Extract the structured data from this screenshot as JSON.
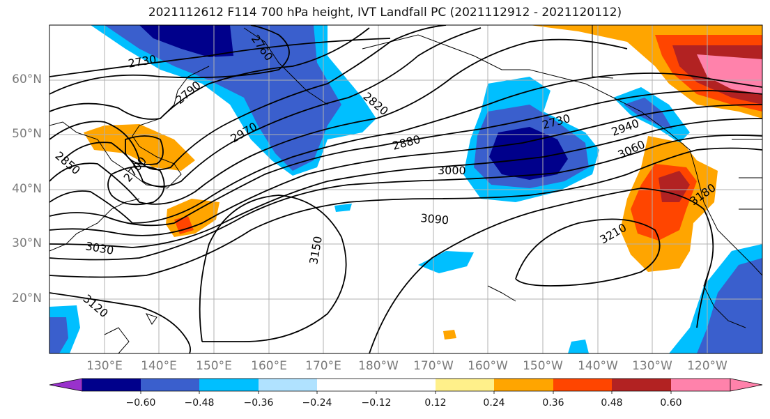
{
  "title": "2021112612 F114 700 hPa height, IVT Landfall PC (2021112912 - 2021120112)",
  "lat_labels": [
    "60°N",
    "50°N",
    "40°N",
    "30°N",
    "20°N"
  ],
  "lon_labels": [
    "130°E",
    "140°E",
    "150°E",
    "160°E",
    "170°E",
    "180°W",
    "170°W",
    "160°W",
    "150°W",
    "140°W",
    "130°W",
    "120°W"
  ],
  "contour_labels": [
    "2730",
    "2760",
    "2790",
    "2820",
    "2850",
    "2880",
    "2940",
    "2970",
    "3000",
    "3030",
    "3060",
    "3090",
    "3120",
    "3150",
    "3180",
    "3210",
    "2700",
    "2730"
  ],
  "colorbar": {
    "ticks": [
      "−0.60",
      "−0.48",
      "−0.36",
      "−0.24",
      "−0.12",
      "0.12",
      "0.24",
      "0.36",
      "0.48",
      "0.60"
    ],
    "colors": [
      "#9932cc",
      "#00008b",
      "#3a5fcd",
      "#00bfff",
      "#b0e2ff",
      "#ffffff",
      "#fff08a",
      "#ffa500",
      "#ff4500",
      "#b22222",
      "#ff82ab"
    ]
  }
}
